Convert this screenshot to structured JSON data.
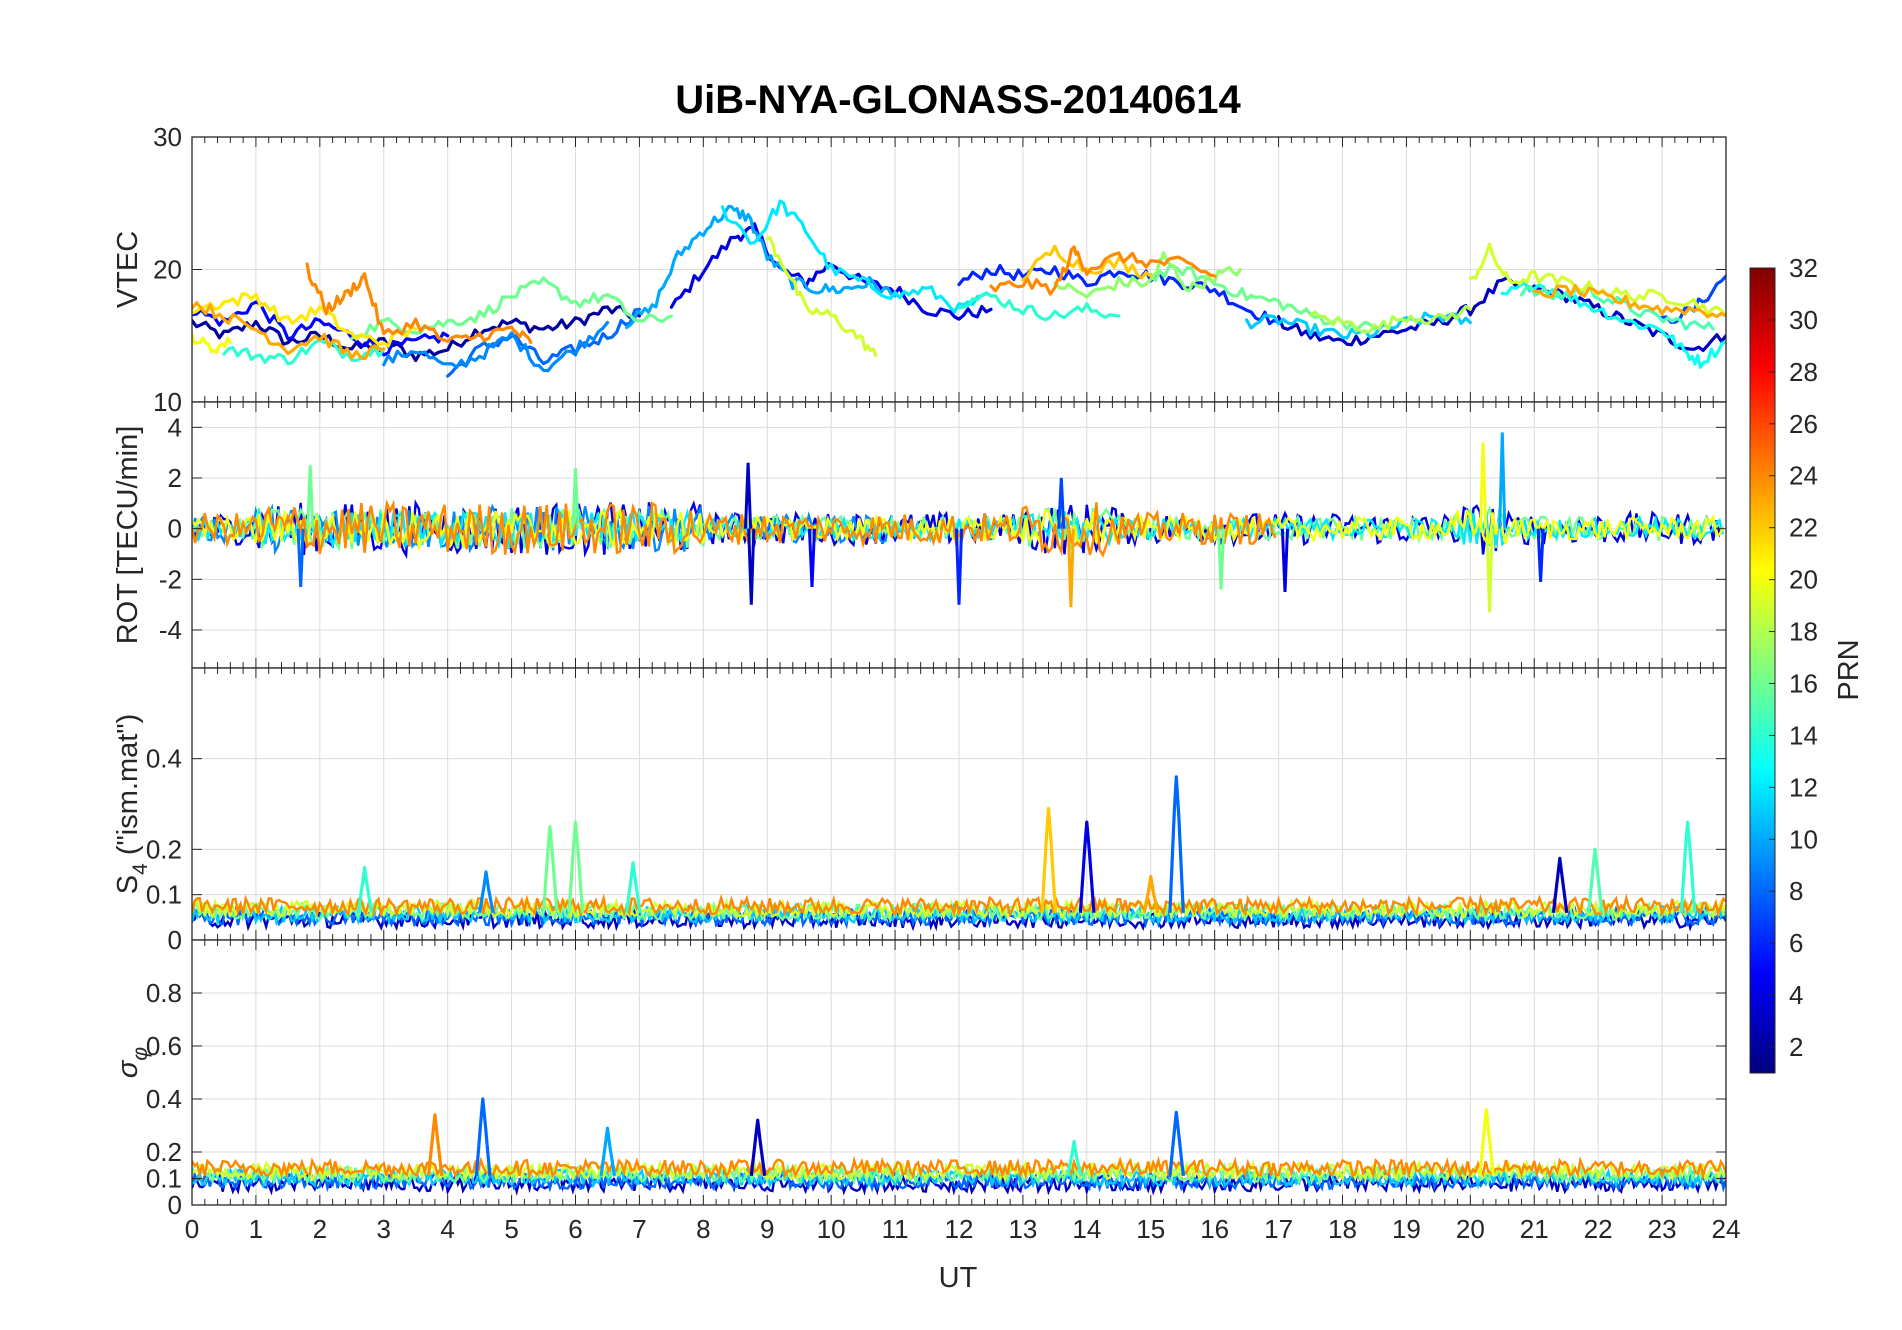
{
  "chart_data": {
    "type": "line",
    "title": "UiB-NYA-GLONASS-20140614",
    "xlabel": "UT",
    "xlim": [
      0,
      24
    ],
    "xticks": [
      "0",
      "1",
      "2",
      "3",
      "4",
      "5",
      "6",
      "7",
      "8",
      "9",
      "10",
      "11",
      "12",
      "13",
      "14",
      "15",
      "16",
      "17",
      "18",
      "19",
      "20",
      "21",
      "22",
      "23",
      "24"
    ],
    "grid": true,
    "colorbar": {
      "label": "PRN",
      "colormap": "jet",
      "range": [
        1,
        32
      ],
      "ticks": [
        "2",
        "4",
        "6",
        "8",
        "10",
        "12",
        "14",
        "16",
        "18",
        "20",
        "22",
        "24",
        "26",
        "28",
        "30",
        "32"
      ],
      "tick_values": [
        2,
        4,
        6,
        8,
        10,
        12,
        14,
        16,
        18,
        20,
        22,
        24,
        26,
        28,
        30,
        32
      ]
    },
    "panels": [
      {
        "id": "vtec",
        "ylabel": "VTEC",
        "ylim": [
          10,
          30
        ],
        "yticks": [
          {
            "v": 10,
            "t": "10"
          },
          {
            "v": 20,
            "t": "20"
          },
          {
            "v": 30,
            "t": "30"
          }
        ],
        "series": [
          {
            "prn": 2,
            "x": [
              0,
              0.5,
              1,
              1.5,
              2,
              2.5,
              3,
              3.5,
              4,
              4.5,
              5,
              5.5,
              6,
              6.5,
              7
            ],
            "y": [
              16,
              15,
              16,
              14.5,
              15,
              14,
              14.5,
              13.5,
              14,
              15.5,
              16,
              15.5,
              16,
              17,
              16.5
            ]
          },
          {
            "prn": 4,
            "x": [
              7.5,
              8,
              8.5,
              8.8,
              9.2,
              9.6,
              10,
              10.5,
              11,
              11.5,
              12,
              12.5
            ],
            "y": [
              17,
              20,
              22.5,
              23,
              20,
              19,
              20.5,
              19,
              18.5,
              17,
              16.5,
              17
            ]
          },
          {
            "prn": 3,
            "x": [
              17,
              17.5,
              18,
              18.5,
              19,
              19.5,
              20,
              20.5,
              21,
              21.5,
              22,
              22.5,
              23,
              23.5,
              24
            ],
            "y": [
              16,
              15,
              14.5,
              15,
              15.5,
              16,
              17,
              19,
              18.5,
              18,
              17,
              16,
              15,
              14,
              15
            ]
          },
          {
            "prn": 5,
            "x": [
              0,
              0.5,
              1,
              1.5,
              2,
              2.5,
              3,
              3.5,
              4
            ],
            "y": [
              17,
              16,
              17.5,
              15,
              16,
              15,
              14,
              14.5,
              15
            ]
          },
          {
            "prn": 6,
            "x": [
              12,
              12.5,
              13,
              13.5,
              14,
              14.5,
              15,
              15.5,
              16,
              16.5,
              17
            ],
            "y": [
              19,
              20,
              19.5,
              20,
              19,
              20,
              19.5,
              19,
              18.5,
              17,
              16
            ]
          },
          {
            "prn": 7,
            "x": [
              23,
              23.5,
              24
            ],
            "y": [
              16,
              17,
              19.5
            ]
          },
          {
            "prn": 8,
            "x": [
              4,
              4.5,
              5,
              5.5,
              6,
              6.5,
              7
            ],
            "y": [
              12,
              14,
              15,
              13,
              14,
              15,
              17
            ]
          },
          {
            "prn": 9,
            "x": [
              3,
              3.5,
              4,
              4.5,
              5,
              5.5,
              6,
              6.5
            ],
            "y": [
              13,
              14,
              12.5,
              13.5,
              15,
              12.5,
              14,
              16
            ]
          },
          {
            "prn": 10,
            "x": [
              6.8,
              7.2,
              7.6,
              8,
              8.4,
              8.7,
              9,
              9.4,
              9.8,
              10.2,
              10.6,
              11
            ],
            "y": [
              16,
              17,
              21,
              23,
              24.5,
              24,
              21,
              19,
              18.5,
              18.5,
              19,
              18
            ]
          },
          {
            "prn": 11,
            "x": [
              16.5,
              17,
              17.5,
              18,
              18.5,
              19,
              19.5,
              20
            ],
            "y": [
              16,
              16.2,
              15.5,
              15,
              15.2,
              16,
              16.5,
              16
            ]
          },
          {
            "prn": 12,
            "x": [
              8.3,
              8.8,
              9.2,
              9.6,
              10,
              10.5,
              11,
              11.5,
              12,
              12.5
            ],
            "y": [
              24.5,
              22,
              25,
              23,
              20,
              19,
              18,
              18.5,
              17,
              18
            ]
          },
          {
            "prn": 13,
            "x": [
              20.5,
              21,
              21.5,
              22,
              22.5,
              23,
              23.3,
              23.6,
              24
            ],
            "y": [
              18,
              19,
              18,
              17,
              16,
              15.5,
              14,
              13,
              14.5
            ]
          },
          {
            "prn": 14,
            "x": [
              0.5,
              1,
              1.5,
              2,
              2.5,
              3
            ],
            "y": [
              14,
              13.5,
              13.2,
              14.5,
              13.5,
              14
            ]
          },
          {
            "prn": 14,
            "x": [
              12,
              12.5,
              13,
              13.5,
              14,
              14.5
            ],
            "y": [
              17.5,
              18,
              17,
              16.5,
              17,
              16.5
            ]
          },
          {
            "prn": 15,
            "x": [
              20.8,
              21.3,
              21.8,
              22.3,
              22.8,
              23.3,
              23.8
            ],
            "y": [
              18.5,
              18,
              18.5,
              17.5,
              16.5,
              16,
              15.5
            ]
          },
          {
            "prn": 16,
            "x": [
              2.5,
              3,
              3.5,
              4,
              4.5,
              5,
              5.5,
              6,
              6.5,
              7,
              7.5
            ],
            "y": [
              15,
              16,
              15.5,
              16,
              16.5,
              18,
              19,
              17.5,
              18,
              16,
              16.5
            ]
          },
          {
            "prn": 16,
            "x": [
              15,
              15.5,
              16,
              16.5,
              17,
              17.5,
              18,
              18.5
            ],
            "y": [
              19.5,
              20,
              19,
              18,
              17.5,
              16.5,
              16,
              15.5
            ]
          },
          {
            "prn": 17,
            "x": [
              13.5,
              14,
              14.5,
              15,
              15.2,
              15.6,
              16,
              16.4
            ],
            "y": [
              19,
              18,
              19,
              19,
              21,
              18.5,
              19.5,
              20
            ]
          },
          {
            "prn": 18,
            "x": [
              17.5,
              18,
              18.5,
              19,
              19.5,
              20
            ],
            "y": [
              16.5,
              16,
              15.5,
              16.5,
              16.2,
              17
            ]
          },
          {
            "prn": 19,
            "x": [
              9,
              9.3,
              9.6,
              10,
              10.4,
              10.7
            ],
            "y": [
              22.5,
              20,
              17,
              16.5,
              15,
              13.5
            ]
          },
          {
            "prn": 19,
            "x": [
              20,
              20.3,
              20.6,
              21,
              21.5,
              22,
              22.5,
              23,
              23.5,
              24
            ],
            "y": [
              19,
              21.5,
              19,
              19.5,
              19,
              18.5,
              18,
              18,
              17.5,
              16.5
            ]
          },
          {
            "prn": 20,
            "x": [
              0,
              0.3,
              0.6
            ],
            "y": [
              15,
              14,
              14.5
            ]
          },
          {
            "prn": 21,
            "x": [
              0,
              0.5,
              1,
              1.5,
              2,
              2.5,
              3,
              3.5
            ],
            "y": [
              17,
              17.5,
              18,
              16,
              17,
              15,
              14.5,
              15.5
            ]
          },
          {
            "prn": 22,
            "x": [
              13,
              13.5,
              14,
              14.5,
              15
            ],
            "y": [
              19.5,
              21.5,
              20,
              20.5,
              19.5
            ]
          },
          {
            "prn": 23,
            "x": [
              0,
              0.5,
              1,
              1.5,
              2,
              2.5,
              3
            ],
            "y": [
              17.5,
              16.5,
              15.5,
              14,
              15,
              13.5,
              14
            ]
          },
          {
            "prn": 23,
            "x": [
              21,
              21.5,
              22,
              22.5,
              23,
              23.5,
              24
            ],
            "y": [
              18,
              18.5,
              18,
              17.5,
              17,
              17,
              16.5
            ]
          },
          {
            "prn": 24,
            "x": [
              1.8,
              2.1,
              2.4,
              2.7,
              3,
              3.5,
              4,
              4.5,
              5,
              5.3
            ],
            "y": [
              20,
              17,
              18,
              19.5,
              15,
              16,
              14.5,
              15,
              15.5,
              14.5
            ]
          },
          {
            "prn": 24,
            "x": [
              12.5,
              13,
              13.5,
              13.8,
              14,
              14.5,
              15,
              15.5,
              16
            ],
            "y": [
              18.5,
              19,
              18.5,
              21.5,
              20,
              21,
              20.5,
              20.5,
              19.5
            ]
          }
        ]
      },
      {
        "id": "rot",
        "ylabel": "ROT [TECU/min]",
        "ylim": [
          -5.5,
          5
        ],
        "yticks": [
          {
            "v": -4,
            "t": "-4"
          },
          {
            "v": -2,
            "t": "-2"
          },
          {
            "v": 0,
            "t": "0"
          },
          {
            "v": 2,
            "t": "2"
          },
          {
            "v": 4,
            "t": "4"
          }
        ],
        "noise": {
          "band_amp": 0.6,
          "spikes": [
            {
              "x": 1.7,
              "y": -2.3,
              "prn": 8
            },
            {
              "x": 1.85,
              "y": 2.5,
              "prn": 16
            },
            {
              "x": 8.7,
              "y": 2.6,
              "prn": 3
            },
            {
              "x": 8.75,
              "y": -3.0,
              "prn": 3
            },
            {
              "x": 9.7,
              "y": -2.3,
              "prn": 5
            },
            {
              "x": 12.0,
              "y": -3.0,
              "prn": 6
            },
            {
              "x": 13.6,
              "y": 2.0,
              "prn": 7
            },
            {
              "x": 13.75,
              "y": -3.1,
              "prn": 23
            },
            {
              "x": 17.1,
              "y": -2.5,
              "prn": 4
            },
            {
              "x": 20.2,
              "y": 3.4,
              "prn": 20
            },
            {
              "x": 20.5,
              "y": 3.8,
              "prn": 10
            },
            {
              "x": 20.3,
              "y": -3.3,
              "prn": 19
            },
            {
              "x": 21.1,
              "y": -2.1,
              "prn": 6
            },
            {
              "x": 16.1,
              "y": -2.4,
              "prn": 16
            },
            {
              "x": 6.0,
              "y": 2.4,
              "prn": 16
            }
          ]
        }
      },
      {
        "id": "s4",
        "ylabel": "S4 (\"ism.mat\")",
        "ylim": [
          0,
          0.6
        ],
        "yticks": [
          {
            "v": 0,
            "t": "0"
          },
          {
            "v": 0.1,
            "t": "0.1"
          },
          {
            "v": 0.2,
            "t": "0.2"
          },
          {
            "v": 0.4,
            "t": "0.4"
          }
        ],
        "baseline": 0.06,
        "spikes": [
          {
            "x": 5.6,
            "y": 0.25,
            "prn": 16
          },
          {
            "x": 6.0,
            "y": 0.26,
            "prn": 16
          },
          {
            "x": 6.9,
            "y": 0.17,
            "prn": 14
          },
          {
            "x": 13.4,
            "y": 0.29,
            "prn": 22
          },
          {
            "x": 14.0,
            "y": 0.26,
            "prn": 4
          },
          {
            "x": 15.4,
            "y": 0.36,
            "prn": 8
          },
          {
            "x": 15.0,
            "y": 0.14,
            "prn": 23
          },
          {
            "x": 21.4,
            "y": 0.18,
            "prn": 3
          },
          {
            "x": 21.95,
            "y": 0.2,
            "prn": 15
          },
          {
            "x": 23.4,
            "y": 0.26,
            "prn": 14
          },
          {
            "x": 2.7,
            "y": 0.16,
            "prn": 14
          },
          {
            "x": 4.6,
            "y": 0.15,
            "prn": 9
          }
        ]
      },
      {
        "id": "sigphi",
        "ylabel": "σφ",
        "ylim": [
          0,
          1
        ],
        "yticks": [
          {
            "v": 0,
            "t": "0"
          },
          {
            "v": 0.1,
            "t": "0.1"
          },
          {
            "v": 0.2,
            "t": "0.2"
          },
          {
            "v": 0.4,
            "t": "0.4"
          },
          {
            "v": 0.6,
            "t": "0.6"
          },
          {
            "v": 0.8,
            "t": "0.8"
          }
        ],
        "baseline": 0.11,
        "spikes": [
          {
            "x": 3.8,
            "y": 0.34,
            "prn": 24
          },
          {
            "x": 4.55,
            "y": 0.4,
            "prn": 8
          },
          {
            "x": 8.85,
            "y": 0.32,
            "prn": 3
          },
          {
            "x": 15.4,
            "y": 0.35,
            "prn": 8
          },
          {
            "x": 20.25,
            "y": 0.36,
            "prn": 20
          },
          {
            "x": 13.8,
            "y": 0.24,
            "prn": 14
          },
          {
            "x": 6.5,
            "y": 0.29,
            "prn": 10
          }
        ]
      }
    ]
  }
}
